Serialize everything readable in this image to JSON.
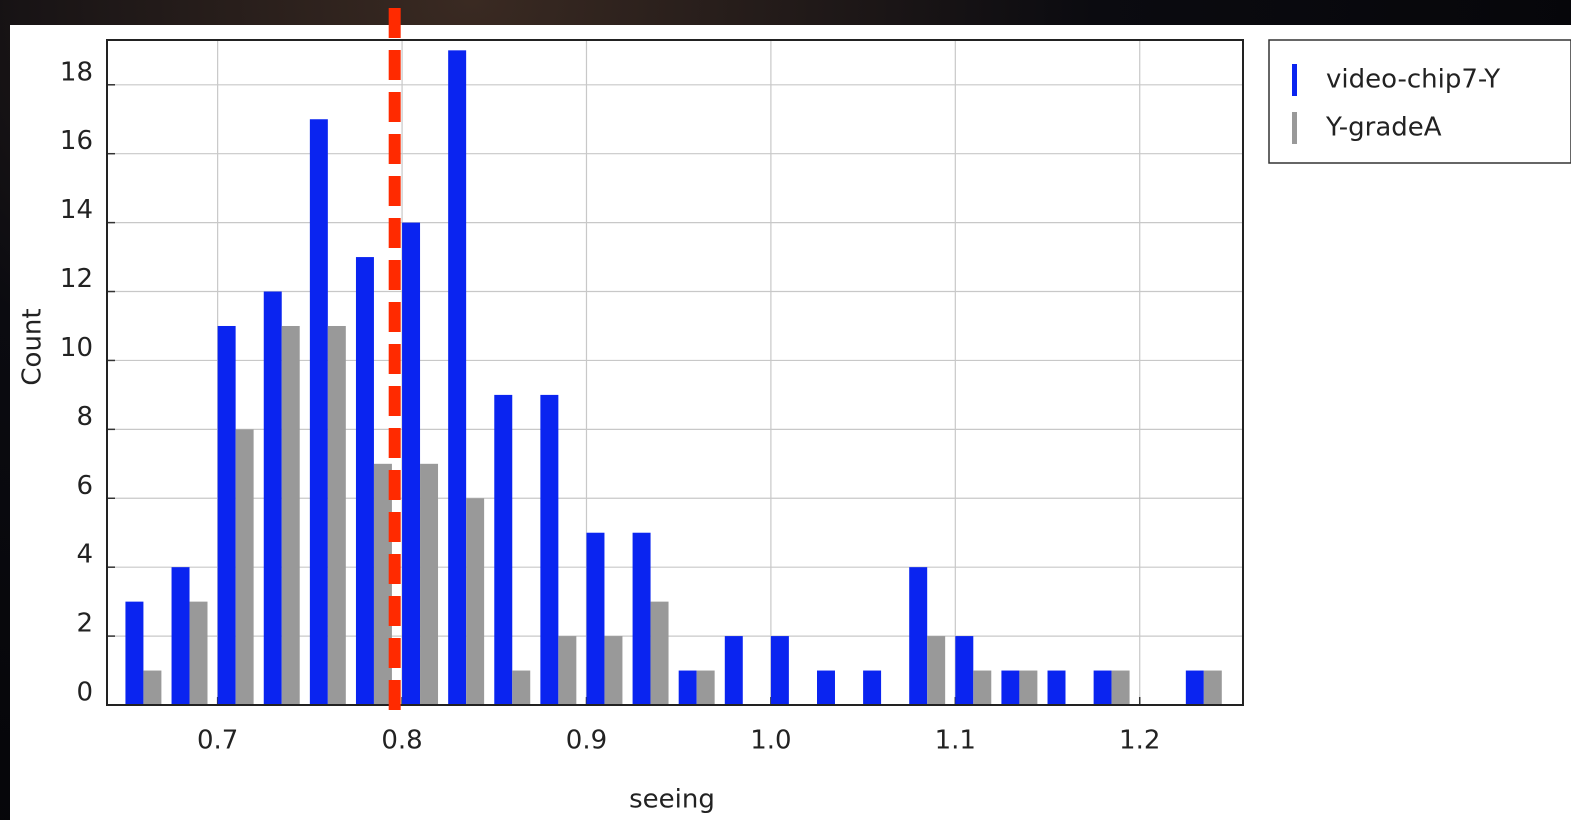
{
  "chart_data": {
    "type": "histogram",
    "x_label": "seeing",
    "y_label": "Count",
    "bins": [
      0.65,
      0.675,
      0.7,
      0.725,
      0.75,
      0.775,
      0.8,
      0.825,
      0.85,
      0.875,
      0.9,
      0.925,
      0.95,
      0.975,
      1.0,
      1.025,
      1.05,
      1.075,
      1.1,
      1.125,
      1.15,
      1.175,
      1.2,
      1.225,
      1.25
    ],
    "series": [
      {
        "name": "video-chip7-Y",
        "color": "#0a24f0",
        "values": [
          3,
          4,
          11,
          12,
          17,
          13,
          14,
          19,
          9,
          9,
          5,
          5,
          1,
          2,
          2,
          1,
          1,
          4,
          2,
          1,
          1,
          1,
          0,
          1
        ]
      },
      {
        "name": "Y-gradeA",
        "color": "#999999",
        "values": [
          1,
          3,
          8,
          11,
          11,
          7,
          7,
          6,
          1,
          2,
          2,
          3,
          1,
          0,
          0,
          0,
          0,
          2,
          1,
          1,
          0,
          1,
          0,
          1
        ]
      }
    ],
    "reference_line": {
      "x": 0.796,
      "color": "#ff2a00"
    },
    "xlim": [
      0.64,
      1.256
    ],
    "ylim": [
      0,
      19.3
    ],
    "xticks": [
      0.7,
      0.8,
      0.9,
      {
        "value": 1,
        "label": "1.0"
      },
      1.1,
      1.2
    ],
    "yticks": [
      0,
      2,
      4,
      6,
      8,
      10,
      12,
      14,
      16,
      18
    ],
    "grid": true
  }
}
